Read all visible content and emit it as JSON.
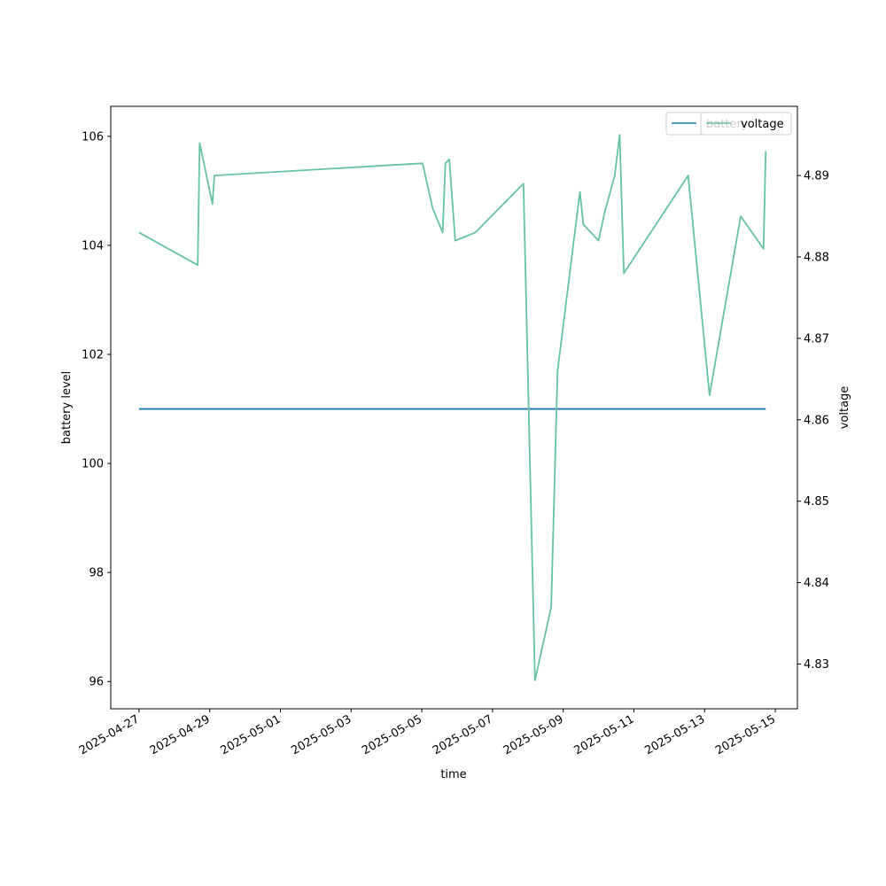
{
  "chart_data": {
    "type": "line",
    "xlabel": "time",
    "ylabel_left": "battery level",
    "ylabel_right": "voltage",
    "x_axis": {
      "type": "date",
      "range": [
        "2025-04-26 04:48",
        "2025-05-15 15:00"
      ],
      "ticks": [
        "2025-04-27",
        "2025-04-29",
        "2025-05-01",
        "2025-05-03",
        "2025-05-05",
        "2025-05-07",
        "2025-05-09",
        "2025-05-11",
        "2025-05-13",
        "2025-05-15"
      ]
    },
    "y_left": {
      "range": [
        95.5,
        106.55
      ],
      "ticks": [
        96,
        98,
        100,
        102,
        104,
        106
      ]
    },
    "y_right": {
      "range": [
        4.8245,
        4.8985
      ],
      "ticks": [
        4.83,
        4.84,
        4.85,
        4.86,
        4.87,
        4.88,
        4.89
      ]
    },
    "grid": false,
    "legend": {
      "placement": "top-right",
      "left_entries": [
        "battery"
      ],
      "right_entries": [
        "voltage"
      ]
    },
    "series": [
      {
        "name": "battery",
        "axis": "left",
        "color": "#1f77b4",
        "points": [
          [
            "2025-04-27 00:00",
            101
          ],
          [
            "2025-05-14 17:30",
            101
          ]
        ]
      },
      {
        "name": "voltage",
        "axis": "right",
        "color": "#66c2a5",
        "points": [
          [
            "2025-04-27 00:00",
            4.883
          ],
          [
            "2025-04-28 15:50",
            4.879
          ],
          [
            "2025-04-28 17:10",
            4.894
          ],
          [
            "2025-04-29 01:50",
            4.8865
          ],
          [
            "2025-04-29 03:10",
            4.89
          ],
          [
            "2025-05-05 00:30",
            4.8915
          ],
          [
            "2025-05-05 07:20",
            4.886
          ],
          [
            "2025-05-05 14:10",
            4.883
          ],
          [
            "2025-05-05 16:00",
            4.8915
          ],
          [
            "2025-05-05 18:40",
            4.892
          ],
          [
            "2025-05-05 22:40",
            4.882
          ],
          [
            "2025-05-06 12:20",
            4.883
          ],
          [
            "2025-05-07 21:00",
            4.889
          ],
          [
            "2025-05-08 04:50",
            4.828
          ],
          [
            "2025-05-08 15:50",
            4.837
          ],
          [
            "2025-05-08 20:10",
            4.866
          ],
          [
            "2025-05-09 11:20",
            4.888
          ],
          [
            "2025-05-09 13:40",
            4.884
          ],
          [
            "2025-05-10 00:00",
            4.882
          ],
          [
            "2025-05-10 04:10",
            4.8855
          ],
          [
            "2025-05-10 11:00",
            4.89
          ],
          [
            "2025-05-10 14:20",
            4.895
          ],
          [
            "2025-05-10 17:10",
            4.878
          ],
          [
            "2025-05-12 12:50",
            4.89
          ],
          [
            "2025-05-13 03:20",
            4.863
          ],
          [
            "2025-05-14 00:30",
            4.885
          ],
          [
            "2025-05-14 16:00",
            4.881
          ],
          [
            "2025-05-14 17:30",
            4.893
          ]
        ]
      }
    ]
  }
}
